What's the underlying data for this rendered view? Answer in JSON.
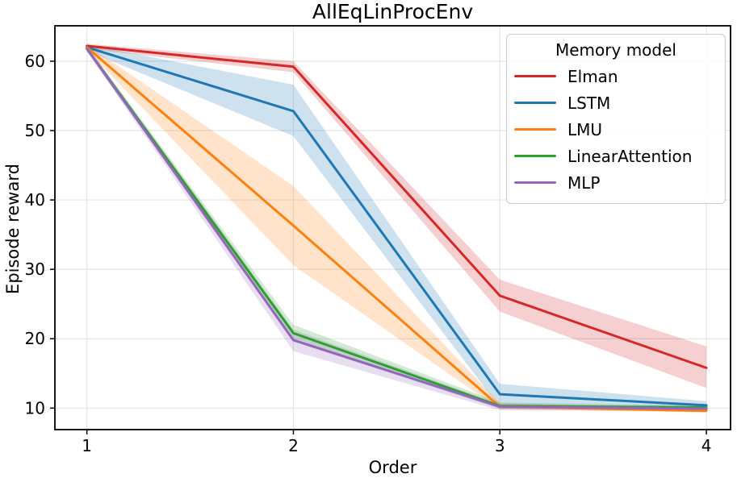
{
  "chart_data": {
    "type": "line",
    "title": "AllEqLinProcEnv",
    "xlabel": "Order",
    "ylabel": "Episode reward",
    "legend_title": "Memory model",
    "legend_position": "upper right",
    "grid": true,
    "x": [
      1,
      2,
      3,
      4
    ],
    "xticks": [
      "1",
      "2",
      "3",
      "4"
    ],
    "yticks": [
      "10",
      "20",
      "30",
      "40",
      "50",
      "60"
    ],
    "xtick_values": [
      1,
      2,
      3,
      4
    ],
    "ytick_values": [
      10,
      20,
      30,
      40,
      50,
      60
    ],
    "xlim": [
      0.845,
      4.117
    ],
    "ylim": [
      6.9,
      65.1
    ],
    "band_opacity": 0.22,
    "series": [
      {
        "name": "Elman",
        "color": "#d62728",
        "values": [
          62.2,
          59.2,
          26.2,
          15.8
        ],
        "lower": [
          61.8,
          58.4,
          23.9,
          12.9
        ],
        "upper": [
          62.5,
          60.0,
          28.5,
          18.9
        ]
      },
      {
        "name": "LSTM",
        "color": "#1f77b4",
        "values": [
          62.0,
          52.8,
          12.0,
          10.4
        ],
        "lower": [
          61.5,
          49.2,
          10.1,
          9.9
        ],
        "upper": [
          62.4,
          56.6,
          13.5,
          11.0
        ]
      },
      {
        "name": "LMU",
        "color": "#ff7f0e",
        "values": [
          62.0,
          36.3,
          10.2,
          9.6
        ],
        "lower": [
          61.6,
          30.6,
          9.8,
          9.4
        ],
        "upper": [
          62.4,
          42.0,
          10.7,
          9.9
        ]
      },
      {
        "name": "LinearAttention",
        "color": "#2ca02c",
        "values": [
          61.8,
          20.8,
          10.3,
          10.1
        ],
        "lower": [
          61.4,
          19.6,
          9.9,
          9.8
        ],
        "upper": [
          62.2,
          22.0,
          10.8,
          10.4
        ]
      },
      {
        "name": "MLP",
        "color": "#9467bd",
        "values": [
          61.8,
          19.8,
          10.2,
          9.9
        ],
        "lower": [
          61.4,
          18.2,
          9.7,
          9.6
        ],
        "upper": [
          62.2,
          21.3,
          10.6,
          10.2
        ]
      }
    ]
  }
}
